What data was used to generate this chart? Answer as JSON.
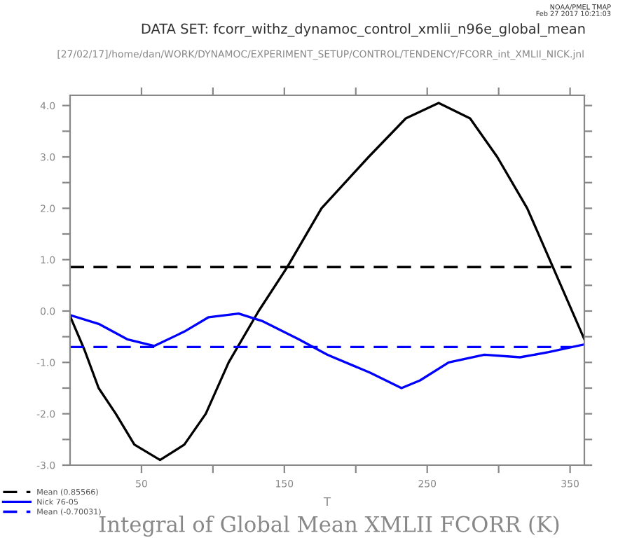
{
  "chart_data": {
    "type": "line",
    "title": "DATA SET: fcorr_withz_dynamoc_control_xmlii_n96e_global_mean",
    "subtitle": "[27/02/17]/home/dan/WORK/DYNAMOC/EXPERIMENT_SETUP/CONTROL/TENDENCY/FCORR_int_XMLII_NICK.jnl",
    "xlabel": "T",
    "annotations": [
      "NOAA/PMEL TMAP\nFeb 27 2017 10:21:03",
      "Integral of Global Mean XMLII FCORR (K)"
    ],
    "series": [
      {
        "name": "Mean (0.85566)",
        "color": "#000000",
        "line_style": "dashed",
        "x": [
          0,
          351
        ],
        "values": [
          0.85566,
          0.85566
        ]
      },
      {
        "color": "#000000",
        "line_style": "solid",
        "x": [
          0,
          10,
          20,
          32,
          45,
          63,
          80,
          95,
          111,
          132,
          152,
          176,
          209,
          235,
          258,
          280,
          299,
          320,
          338,
          360
        ],
        "values": [
          -0.1,
          -0.75,
          -1.5,
          -2.0,
          -2.6,
          -2.9,
          -2.6,
          -2.0,
          -1.0,
          0.0,
          0.855,
          2.0,
          3.0,
          3.75,
          4.05,
          3.75,
          3.0,
          2.0,
          0.855,
          -0.55
        ]
      },
      {
        "name": "Nick 76-05",
        "color": "#0000ff",
        "line_style": "solid",
        "x": [
          0,
          20,
          40,
          59,
          80,
          97,
          118,
          135,
          160,
          180,
          210,
          232,
          245,
          265,
          290,
          315,
          335,
          360
        ],
        "values": [
          -0.08,
          -0.25,
          -0.55,
          -0.68,
          -0.4,
          -0.12,
          -0.05,
          -0.2,
          -0.55,
          -0.85,
          -1.2,
          -1.5,
          -1.35,
          -1.0,
          -0.85,
          -0.9,
          -0.8,
          -0.65
        ]
      },
      {
        "name": "Mean (-0.70031)",
        "color": "#0000ff",
        "line_style": "dashed",
        "x": [
          0,
          351
        ],
        "values": [
          -0.70031,
          -0.70031
        ]
      }
    ],
    "xlim": [
      0,
      360
    ],
    "xticks": [
      50,
      {
        "value": 100,
        "label": null
      },
      150,
      {
        "value": 200,
        "label": null
      },
      250,
      {
        "value": 300,
        "label": null
      },
      350
    ],
    "ylim": [
      -3.0,
      4.2
    ],
    "yticks": [
      {
        "value": -3,
        "label": "-3.0"
      },
      {
        "value": -2.5,
        "label": null
      },
      {
        "value": -2,
        "label": "-2.0"
      },
      {
        "value": -1.5,
        "label": null
      },
      {
        "value": -1,
        "label": "-1.0"
      },
      {
        "value": -0.5,
        "label": null
      },
      {
        "value": 0,
        "label": "0.0"
      },
      {
        "value": 0.5,
        "label": null
      },
      {
        "value": 1,
        "label": "1.0"
      },
      {
        "value": 1.5,
        "label": null
      },
      {
        "value": 2,
        "label": "2.0"
      },
      {
        "value": 2.5,
        "label": null
      },
      {
        "value": 3,
        "label": "3.0"
      },
      {
        "value": 3.5,
        "label": null
      },
      {
        "value": 4,
        "label": "4.0"
      }
    ],
    "grid": false,
    "legend": "bottom left"
  }
}
